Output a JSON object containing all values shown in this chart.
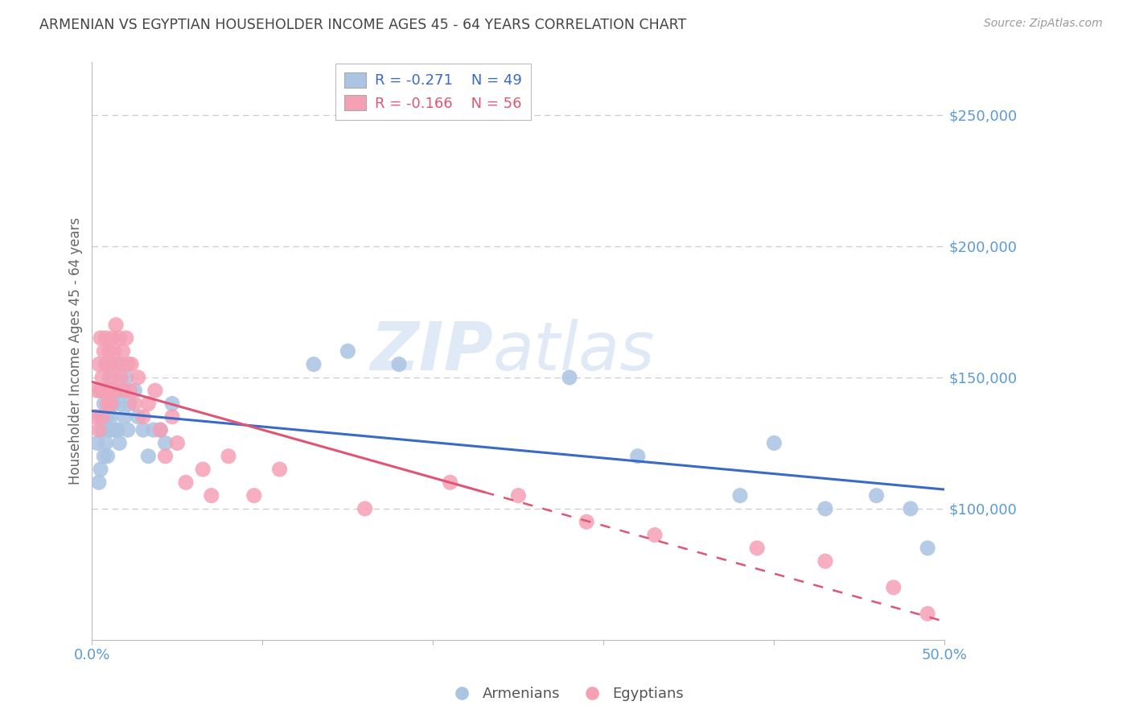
{
  "title": "ARMENIAN VS EGYPTIAN HOUSEHOLDER INCOME AGES 45 - 64 YEARS CORRELATION CHART",
  "source": "Source: ZipAtlas.com",
  "ylabel": "Householder Income Ages 45 - 64 years",
  "xlim": [
    0.0,
    0.5
  ],
  "ylim": [
    50000,
    270000
  ],
  "background_color": "#ffffff",
  "grid_color": "#cccccc",
  "title_color": "#444444",
  "title_fontsize": 12.5,
  "ax_label_color": "#5b9bd5",
  "source_color": "#999999",
  "armenians_color": "#aac4e2",
  "egyptians_color": "#f5a0b5",
  "armenians_line_color": "#3a6bc4",
  "egyptians_line_color": "#e05575",
  "legend_armenians_R": "-0.271",
  "legend_armenians_N": "49",
  "legend_egyptians_R": "-0.166",
  "legend_egyptians_N": "56",
  "armenians_x": [
    0.003,
    0.004,
    0.005,
    0.005,
    0.006,
    0.006,
    0.007,
    0.007,
    0.008,
    0.008,
    0.009,
    0.009,
    0.01,
    0.01,
    0.011,
    0.011,
    0.012,
    0.012,
    0.013,
    0.014,
    0.015,
    0.015,
    0.016,
    0.016,
    0.017,
    0.018,
    0.019,
    0.02,
    0.021,
    0.022,
    0.025,
    0.027,
    0.03,
    0.033,
    0.036,
    0.04,
    0.043,
    0.047,
    0.13,
    0.15,
    0.18,
    0.28,
    0.32,
    0.38,
    0.4,
    0.43,
    0.46,
    0.48,
    0.49
  ],
  "armenians_y": [
    125000,
    110000,
    135000,
    115000,
    130000,
    145000,
    120000,
    140000,
    125000,
    155000,
    135000,
    120000,
    150000,
    130000,
    140000,
    135000,
    145000,
    130000,
    140000,
    130000,
    145000,
    130000,
    140000,
    125000,
    155000,
    145000,
    135000,
    150000,
    130000,
    140000,
    145000,
    135000,
    130000,
    120000,
    130000,
    130000,
    125000,
    140000,
    155000,
    160000,
    155000,
    150000,
    120000,
    105000,
    125000,
    100000,
    105000,
    100000,
    85000
  ],
  "egyptians_x": [
    0.002,
    0.003,
    0.004,
    0.004,
    0.005,
    0.005,
    0.006,
    0.006,
    0.007,
    0.007,
    0.008,
    0.008,
    0.009,
    0.009,
    0.01,
    0.01,
    0.011,
    0.011,
    0.012,
    0.012,
    0.013,
    0.013,
    0.014,
    0.015,
    0.016,
    0.017,
    0.018,
    0.019,
    0.02,
    0.021,
    0.022,
    0.023,
    0.025,
    0.027,
    0.03,
    0.033,
    0.037,
    0.04,
    0.043,
    0.047,
    0.05,
    0.055,
    0.065,
    0.07,
    0.08,
    0.095,
    0.11,
    0.16,
    0.21,
    0.25,
    0.29,
    0.33,
    0.39,
    0.43,
    0.47,
    0.49
  ],
  "egyptians_y": [
    135000,
    145000,
    130000,
    155000,
    145000,
    165000,
    150000,
    135000,
    160000,
    145000,
    165000,
    145000,
    155000,
    140000,
    160000,
    145000,
    155000,
    140000,
    150000,
    165000,
    160000,
    145000,
    170000,
    155000,
    165000,
    150000,
    160000,
    145000,
    165000,
    155000,
    145000,
    155000,
    140000,
    150000,
    135000,
    140000,
    145000,
    130000,
    120000,
    135000,
    125000,
    110000,
    115000,
    105000,
    120000,
    105000,
    115000,
    100000,
    110000,
    105000,
    95000,
    90000,
    85000,
    80000,
    70000,
    60000
  ]
}
